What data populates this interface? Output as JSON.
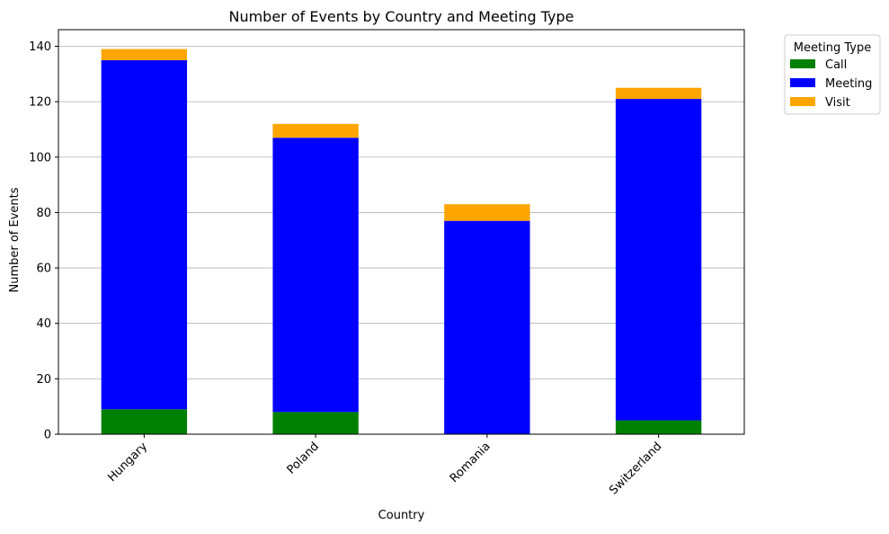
{
  "chart_data": {
    "type": "bar",
    "stacked": true,
    "title": "Number of Events by Country and Meeting Type",
    "xlabel": "Country",
    "ylabel": "Number of Events",
    "categories": [
      "Hungary",
      "Poland",
      "Romania",
      "Switzerland"
    ],
    "series": [
      {
        "name": "Call",
        "color": "#008000",
        "values": [
          9,
          8,
          0,
          5
        ]
      },
      {
        "name": "Meeting",
        "color": "#0000ff",
        "values": [
          126,
          99,
          77,
          116
        ]
      },
      {
        "name": "Visit",
        "color": "#ffa500",
        "values": [
          4,
          5,
          6,
          4
        ]
      }
    ],
    "ylim": [
      0,
      146
    ],
    "yticks": [
      0,
      20,
      40,
      60,
      80,
      100,
      120,
      140
    ],
    "grid": "y",
    "legend": {
      "title": "Meeting Type",
      "placement": "outside-top-right"
    }
  }
}
